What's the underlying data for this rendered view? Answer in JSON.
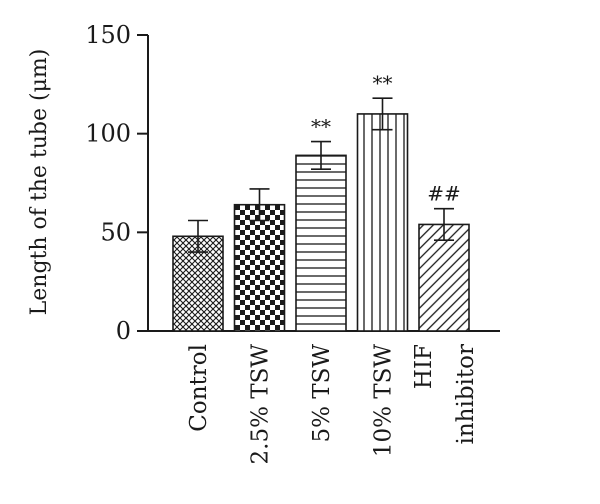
{
  "chart_data": {
    "type": "bar",
    "ylabel": "Length of the tube (μm)",
    "ylim": [
      0,
      150
    ],
    "yticks": [
      0,
      50,
      100,
      150
    ],
    "grid": false,
    "categories": [
      [
        "Control"
      ],
      [
        "2.5% TSW"
      ],
      [
        "5% TSW"
      ],
      [
        "10% TSW"
      ],
      [
        "HIF",
        "inhibitor"
      ]
    ],
    "values": [
      48,
      64,
      89,
      110,
      54
    ],
    "errors": [
      8,
      8,
      7,
      8,
      8
    ],
    "annotations": [
      "",
      "",
      "**",
      "**",
      "##"
    ],
    "fill_patterns": [
      "crosshatch-fine",
      "checkerboard",
      "horizontal-lines",
      "vertical-lines",
      "diagonal-lines"
    ],
    "colors": {
      "ink": "#1a1a1a",
      "background": "#ffffff"
    }
  }
}
